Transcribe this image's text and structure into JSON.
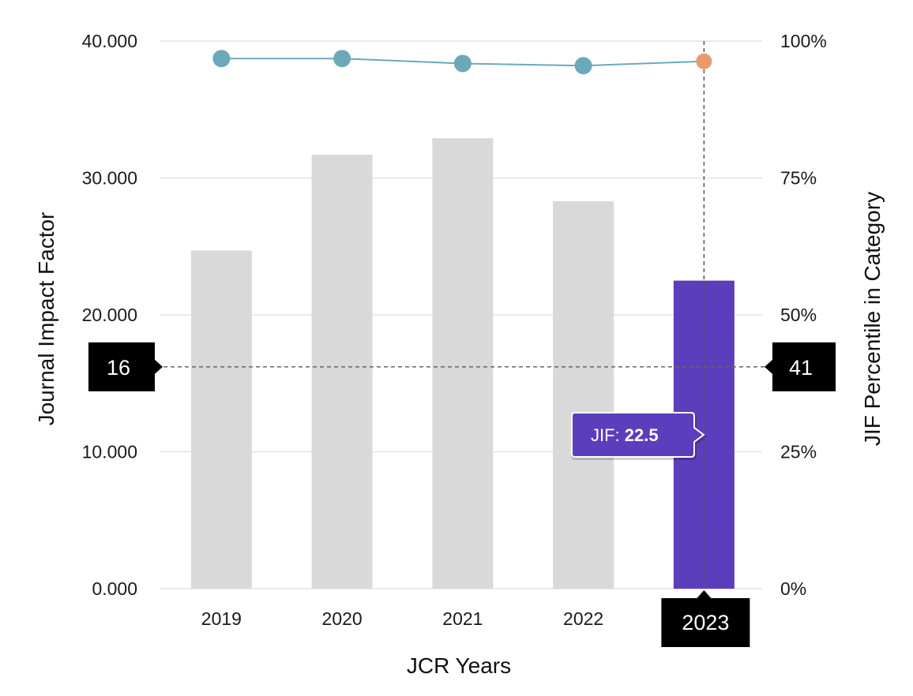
{
  "chart_data": {
    "type": "bar",
    "categories": [
      "2019",
      "2020",
      "2021",
      "2022",
      "2023"
    ],
    "series": [
      {
        "axis": "left",
        "chart_type": "bar",
        "values": [
          24.7,
          31.7,
          32.9,
          28.3,
          22.5
        ]
      },
      {
        "axis": "right",
        "chart_type": "line",
        "values": [
          96.8,
          96.8,
          95.9,
          95.5,
          96.3
        ]
      }
    ],
    "xlabel": "JCR Years",
    "ylabel": "Journal Impact Factor",
    "y2label": "JIF Percentile in Category",
    "ylim": [
      0,
      40
    ],
    "y2lim": [
      0,
      100
    ],
    "y_ticks": [
      "0.000",
      "10.000",
      "20.000",
      "30.000",
      "40.000"
    ],
    "y2_ticks": [
      "0%",
      "25%",
      "50%",
      "75%",
      "100%"
    ],
    "grid": true,
    "selected_category": "2023",
    "reference_line": {
      "left_label": "16",
      "right_label": "41",
      "value": 16.2
    },
    "tooltip": {
      "label": "JIF: ",
      "value": "22.5"
    },
    "colors": {
      "bar": "#d9d9d9",
      "bar_selected": "#5b3ebb",
      "line": "#6ba9b9",
      "point": "#6ba9b9",
      "point_selected": "#e99a6c",
      "marker_bg": "#000000",
      "grid": "#e3e3e3"
    }
  }
}
